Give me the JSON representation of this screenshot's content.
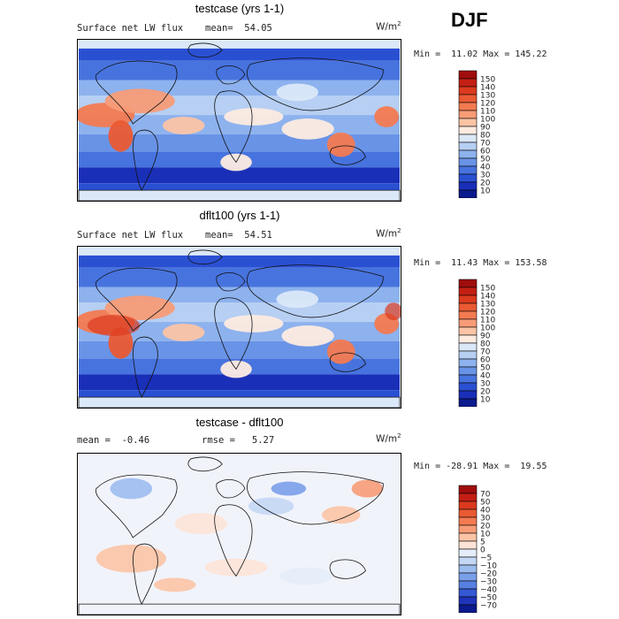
{
  "season": "DJF",
  "units_base": "W/m",
  "units_exp": "2",
  "panels": [
    {
      "title": "testcase (yrs 1-1)",
      "subtitle_left": "Surface net LW flux",
      "subtitle_right": "mean=  54.05",
      "minmax": "Min =  11.02 Max = 145.22",
      "levels": [
        "150",
        "140",
        "130",
        "120",
        "110",
        "100",
        "90",
        "80",
        "70",
        "60",
        "50",
        "40",
        "30",
        "20",
        "10"
      ],
      "colors": [
        "#a00d0d",
        "#c41f14",
        "#db3a1e",
        "#ea5a33",
        "#f37a51",
        "#f79c77",
        "#fbc4a5",
        "#fdebe0",
        "#dbe8f8",
        "#b6cff3",
        "#8db2ee",
        "#6993e6",
        "#4773de",
        "#2a50d2",
        "#1a2fb8",
        "#0b1a8c"
      ]
    },
    {
      "title": "dflt100 (yrs 1-1)",
      "subtitle_left": "Surface net LW flux",
      "subtitle_right": "mean=  54.51",
      "minmax": "Min =  11.43 Max = 153.58",
      "levels": [
        "150",
        "140",
        "130",
        "120",
        "110",
        "100",
        "90",
        "80",
        "70",
        "60",
        "50",
        "40",
        "30",
        "20",
        "10"
      ],
      "colors": [
        "#a00d0d",
        "#c41f14",
        "#db3a1e",
        "#ea5a33",
        "#f37a51",
        "#f79c77",
        "#fbc4a5",
        "#fdebe0",
        "#dbe8f8",
        "#b6cff3",
        "#8db2ee",
        "#6993e6",
        "#4773de",
        "#2a50d2",
        "#1a2fb8",
        "#0b1a8c"
      ]
    },
    {
      "title": "testcase - dflt100",
      "subtitle_left": "mean =  -0.46",
      "subtitle_right": "rmse =   5.27",
      "minmax": "Min = -28.91 Max =  19.55",
      "levels": [
        "70",
        "50",
        "40",
        "30",
        "20",
        "10",
        "5",
        "0",
        "−5",
        "−10",
        "−20",
        "−30",
        "−40",
        "−50",
        "−70"
      ],
      "colors": [
        "#a00d0d",
        "#c41f14",
        "#db3a1e",
        "#ea5a33",
        "#f37a51",
        "#f79c77",
        "#fbc4a5",
        "#fde3d6",
        "#e4edf9",
        "#c4d7f4",
        "#9cbcef",
        "#7a9fe9",
        "#5780e1",
        "#3558d4",
        "#1e34b9",
        "#0b1a8c"
      ]
    }
  ]
}
